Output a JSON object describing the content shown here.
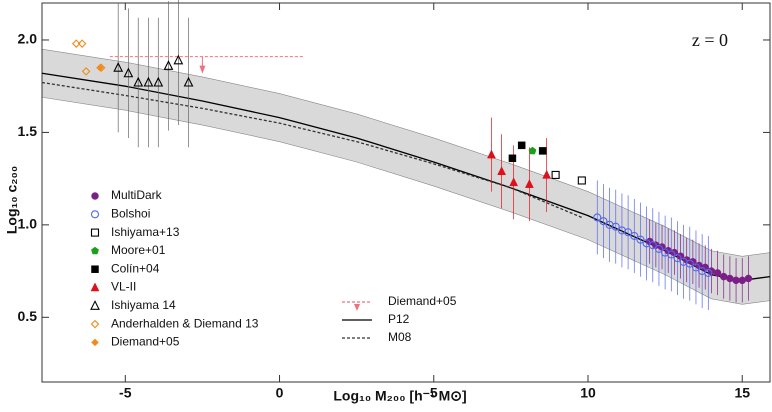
{
  "chart_data": {
    "type": "scatter",
    "annotation": "z = 0",
    "xlabel": "Log₁₀ M₂₀₀ [h⁻¹ M⊙]",
    "ylabel": "Log₁₀ c₂₀₀",
    "xlim": [
      -7.7,
      15.9
    ],
    "ylim": [
      0.15,
      2.2
    ],
    "xticks": [
      -5,
      0,
      5,
      10,
      15
    ],
    "yticks": [
      0.5,
      {
        "value": 1,
        "label": "1.0"
      },
      1.5,
      {
        "value": 2,
        "label": "2.0"
      }
    ],
    "band": {
      "color": "#d9d9d9",
      "x": [
        -7.7,
        -5,
        -2.5,
        0,
        2.5,
        5,
        7.5,
        10,
        12.5,
        14,
        15,
        15.9
      ],
      "lower": [
        1.69,
        1.62,
        1.54,
        1.45,
        1.34,
        1.21,
        1.07,
        0.92,
        0.73,
        0.6,
        0.57,
        0.59
      ],
      "upper": [
        1.95,
        1.88,
        1.8,
        1.71,
        1.6,
        1.47,
        1.33,
        1.18,
        0.99,
        0.86,
        0.83,
        0.85
      ]
    },
    "series": [
      {
        "name": "MultiDark",
        "kind": "points",
        "marker": "circle",
        "color": "#7b1f86",
        "x": [
          12.0,
          12.2,
          12.4,
          12.6,
          12.8,
          13.0,
          13.2,
          13.4,
          13.6,
          13.8,
          14.0,
          14.2,
          14.4,
          14.6,
          14.8,
          15.0,
          15.2
        ],
        "values": [
          0.91,
          0.89,
          0.88,
          0.86,
          0.85,
          0.83,
          0.81,
          0.8,
          0.78,
          0.77,
          0.75,
          0.74,
          0.72,
          0.71,
          0.7,
          0.7,
          0.71
        ],
        "errors": [
          0.12,
          0.12,
          0.12,
          0.12,
          0.12,
          0.12,
          0.12,
          0.12,
          0.12,
          0.12,
          0.12,
          0.12,
          0.12,
          0.12,
          0.12,
          0.12,
          0.12
        ]
      },
      {
        "name": "Bolshoi",
        "kind": "points",
        "marker": "circle-open",
        "color": "#5566ee",
        "x": [
          10.3,
          10.5,
          10.7,
          10.9,
          11.1,
          11.3,
          11.5,
          11.7,
          11.9,
          12.1,
          12.3,
          12.5,
          12.7,
          12.9,
          13.1,
          13.3,
          13.5,
          13.7,
          13.9
        ],
        "values": [
          1.04,
          1.02,
          1.0,
          0.99,
          0.97,
          0.96,
          0.94,
          0.92,
          0.9,
          0.89,
          0.87,
          0.85,
          0.84,
          0.82,
          0.8,
          0.79,
          0.77,
          0.75,
          0.74
        ],
        "errors": [
          0.2,
          0.2,
          0.2,
          0.2,
          0.2,
          0.2,
          0.2,
          0.2,
          0.2,
          0.2,
          0.2,
          0.2,
          0.2,
          0.2,
          0.2,
          0.2,
          0.2,
          0.2,
          0.2
        ]
      },
      {
        "name": "Ishiyama+13",
        "kind": "points",
        "marker": "square-open",
        "color": "#000000",
        "x": [
          8.95,
          9.8
        ],
        "values": [
          1.27,
          1.24
        ]
      },
      {
        "name": "Moore+01",
        "kind": "points",
        "marker": "pentagon",
        "color": "#1aa01a",
        "x": [
          8.2
        ],
        "values": [
          1.4
        ]
      },
      {
        "name": "Colín+04",
        "kind": "points",
        "marker": "square",
        "color": "#000000",
        "x": [
          7.55,
          7.85,
          8.53
        ],
        "values": [
          1.36,
          1.43,
          1.4
        ]
      },
      {
        "name": "VL-II",
        "kind": "points",
        "marker": "triangle",
        "color": "#e0101a",
        "x": [
          6.87,
          7.2,
          7.59,
          8.1,
          8.66
        ],
        "values": [
          1.38,
          1.29,
          1.23,
          1.22,
          1.27
        ],
        "errors": [
          0.2,
          0.2,
          0.2,
          0.2,
          0.2
        ]
      },
      {
        "name": "Ishiyama 14",
        "kind": "points",
        "marker": "triangle-open",
        "color": "#000000",
        "x": [
          -5.23,
          -4.9,
          -4.58,
          -4.25,
          -3.93,
          -3.6,
          -3.28,
          -2.95
        ],
        "values": [
          1.85,
          1.82,
          1.77,
          1.77,
          1.77,
          1.86,
          1.89,
          1.77
        ],
        "errors": [
          0.35,
          0.35,
          0.35,
          0.35,
          0.35,
          0.35,
          0.35,
          0.35
        ]
      },
      {
        "name": "Anderhalden & Diemand 13",
        "kind": "points",
        "marker": "diamond-open",
        "color": "#f08a1c",
        "x": [
          -6.59,
          -6.4,
          -6.27,
          -5.78
        ],
        "values": [
          1.98,
          1.98,
          1.83,
          1.85
        ]
      },
      {
        "name": "Diemand+05",
        "kind": "points",
        "marker": "diamond",
        "color": "#f08a1c",
        "x": [
          -5.82
        ],
        "values": [
          1.85
        ]
      },
      {
        "name": "Diemand+05",
        "kind": "upper-limit",
        "color": "#f07080",
        "x": [
          -2.5
        ],
        "values": [
          1.91
        ],
        "x_range": [
          -5.5,
          0.8
        ]
      },
      {
        "name": "P12",
        "kind": "line",
        "color": "#000000",
        "dash": "none",
        "x": [
          -7.7,
          -5,
          -2.5,
          0,
          2.5,
          5,
          7.5,
          10,
          12.5,
          14,
          15,
          15.9
        ],
        "values": [
          1.82,
          1.75,
          1.67,
          1.58,
          1.47,
          1.34,
          1.2,
          1.05,
          0.86,
          0.73,
          0.7,
          0.72
        ]
      },
      {
        "name": "M08",
        "kind": "line",
        "color": "#333333",
        "dash": "3,2",
        "x": [
          -7.7,
          -5,
          -2.5,
          0,
          2.5,
          5,
          7.5,
          9.8
        ],
        "values": [
          1.77,
          1.7,
          1.63,
          1.55,
          1.45,
          1.33,
          1.2,
          1.04
        ]
      }
    ]
  }
}
